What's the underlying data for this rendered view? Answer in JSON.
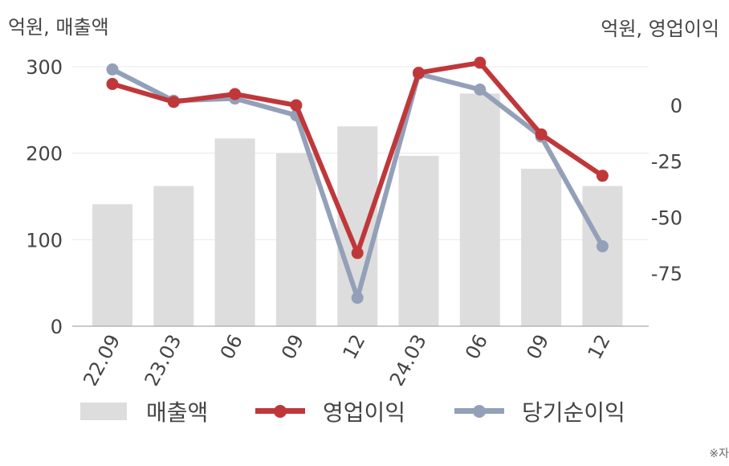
{
  "unit_left": "억원, 매출액",
  "unit_right": "억원, 영업이익",
  "footnote": "※자",
  "colors": {
    "bar": "#dddddd",
    "operating_profit": "#c0373a",
    "net_income": "#93a0b8",
    "grid": "#e8e8e8",
    "axis": "#aaaaaa"
  },
  "chart_data": {
    "type": "bar",
    "categories": [
      "22.09",
      "23.03",
      "06",
      "09",
      "12",
      "24.03",
      "06",
      "09",
      "12"
    ],
    "y_left": {
      "ticks": [
        0,
        100,
        200,
        300
      ],
      "ylim": [
        0,
        300
      ]
    },
    "y_right": {
      "ticks": [
        0,
        -25,
        -50,
        -75
      ],
      "ylim": [
        -99,
        17.5
      ]
    },
    "series": [
      {
        "name": "매출액",
        "type": "bar",
        "axis": "left",
        "values": [
          141,
          162,
          217,
          200,
          231,
          197,
          269,
          182,
          162
        ]
      },
      {
        "name": "영업이익",
        "type": "line",
        "axis": "right",
        "values": [
          9.5,
          1.5,
          5,
          0,
          -66,
          14.5,
          19,
          -13,
          -31.5
        ]
      },
      {
        "name": "당기순이익",
        "type": "line",
        "axis": "right",
        "values": [
          16,
          2,
          3,
          -4.5,
          -86,
          14,
          7,
          -14,
          -63
        ]
      }
    ],
    "grid": true,
    "legend_position": "bottom"
  }
}
